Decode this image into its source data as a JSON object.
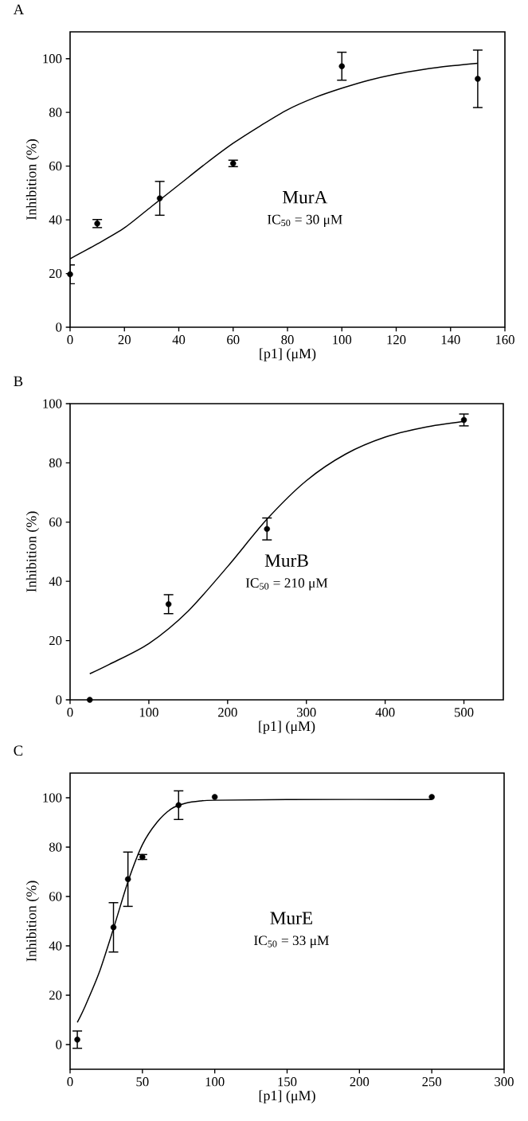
{
  "chart_data": [
    {
      "type": "scatter",
      "title": "A",
      "xlabel": "[p1] (μM)",
      "ylabel": "Inhibition (%)",
      "xlim": [
        0,
        160
      ],
      "xticks": [
        0,
        20,
        40,
        60,
        80,
        100,
        120,
        140,
        160
      ],
      "ylim": [
        0,
        110
      ],
      "yticks": [
        0,
        20,
        40,
        60,
        80,
        100
      ],
      "series": [
        {
          "marker": "circle",
          "color": "#000000",
          "x": [
            0,
            10,
            33,
            60,
            100,
            150
          ],
          "values": [
            19.7,
            38.6,
            48,
            61,
            97.2,
            92.5
          ],
          "errors": [
            3.5,
            1.5,
            6.3,
            1.2,
            5.2,
            10.7
          ]
        },
        {
          "type": "line",
          "color": "#000000",
          "marker": "none",
          "line_style": "solid",
          "x": [
            0,
            10,
            20,
            30,
            40,
            50,
            60,
            70,
            80,
            90,
            100,
            110,
            120,
            130,
            140,
            150
          ],
          "values": [
            25.5,
            31,
            37,
            45,
            53,
            61,
            68.5,
            75,
            81,
            85.5,
            89,
            92,
            94.3,
            96,
            97.3,
            98.3
          ]
        }
      ],
      "annotations": [
        "MurA",
        "IC$_{50}$ = 30 μM"
      ]
    },
    {
      "type": "scatter",
      "title": "B",
      "xlabel": "[p1] (μM)",
      "ylabel": "Inhibition (%)",
      "xlim": [
        0,
        550
      ],
      "xticks": [
        0,
        100,
        200,
        300,
        400,
        500
      ],
      "ylim": [
        0,
        100
      ],
      "yticks": [
        0,
        20,
        40,
        60,
        80,
        100
      ],
      "series": [
        {
          "marker": "circle",
          "color": "#000000",
          "x": [
            25,
            125,
            250,
            500
          ],
          "values": [
            0,
            32.3,
            57.7,
            94.5
          ],
          "errors": [
            null,
            3.2,
            3.7,
            2
          ]
        },
        {
          "type": "line",
          "color": "#000000",
          "marker": "none",
          "line_style": "solid",
          "x": [
            25,
            50,
            100,
            150,
            200,
            250,
            300,
            350,
            400,
            450,
            500
          ],
          "values": [
            8.8,
            12,
            19,
            30,
            45,
            61,
            74,
            83,
            88.7,
            92,
            94
          ]
        }
      ],
      "annotations": [
        "MurB",
        "IC$_{50}$ = 210 μM"
      ]
    },
    {
      "type": "scatter",
      "title": "C",
      "xlabel": "[p1] (μM)",
      "ylabel": "Inhibition (%)",
      "xlim": [
        0,
        300
      ],
      "xticks": [
        0,
        50,
        100,
        150,
        200,
        250,
        300
      ],
      "ylim": [
        -10,
        110
      ],
      "yticks": [
        0,
        20,
        40,
        60,
        80,
        100
      ],
      "series": [
        {
          "marker": "circle",
          "color": "#000000",
          "x": [
            5,
            30,
            40,
            50,
            75,
            100,
            250
          ],
          "values": [
            2,
            47.5,
            67,
            76,
            97,
            100.3,
            100.3
          ],
          "errors": [
            3.5,
            10,
            11,
            1,
            5.8,
            null,
            null
          ]
        },
        {
          "type": "line",
          "color": "#000000",
          "marker": "none",
          "line_style": "solid",
          "x": [
            5,
            10,
            20,
            30,
            40,
            50,
            60,
            70,
            80,
            90,
            100,
            150,
            250
          ],
          "values": [
            9,
            15,
            29,
            47,
            66,
            81,
            90,
            95.5,
            97.8,
            98.7,
            99,
            99.3,
            99.3
          ]
        }
      ],
      "annotations": [
        "MurE",
        "IC$_{50}$ = 33 μM"
      ]
    }
  ]
}
